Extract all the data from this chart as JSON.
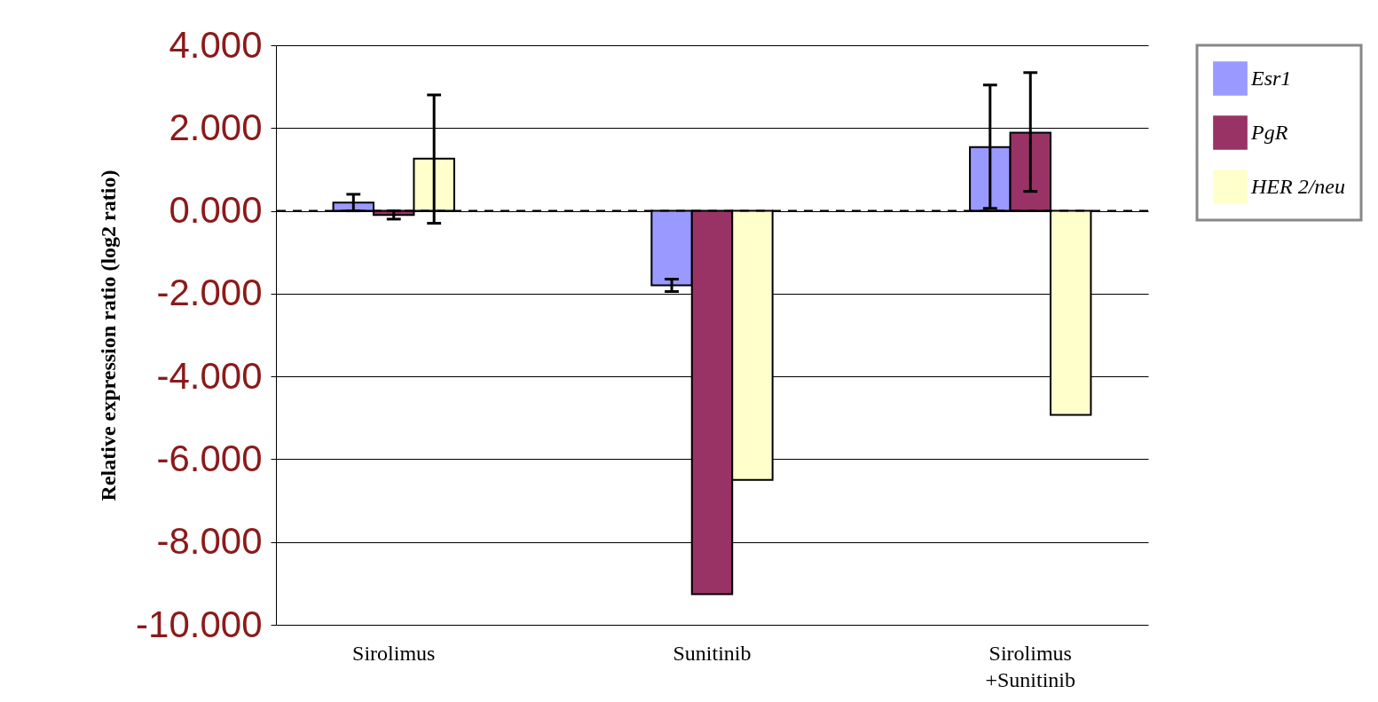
{
  "chart_data": {
    "type": "bar",
    "ylabel": "Relative expression ratio (log2 ratio)",
    "categories": [
      "Sirolimus",
      "Sunitinib",
      "Sirolimus +Sunitinib"
    ],
    "series": [
      {
        "name": "Esr1",
        "color": "#9999ff",
        "values": [
          0.2,
          -1.8,
          1.54
        ],
        "errors": [
          0.2,
          [
            -1.95,
            -1.65
          ],
          [
            0.06,
            3.04
          ]
        ]
      },
      {
        "name": "PgR",
        "color": "#993366",
        "values": [
          -0.1,
          -9.26,
          1.89
        ],
        "errors": [
          0.1,
          null,
          [
            0.47,
            3.34
          ]
        ]
      },
      {
        "name": "HER 2/neu",
        "color": "#ffffcc",
        "values": [
          1.26,
          -6.5,
          -4.93
        ],
        "errors": [
          [
            -0.3,
            2.8
          ],
          null,
          null
        ]
      }
    ],
    "ylim": [
      -10,
      4
    ],
    "yticks": [
      {
        "value": -10,
        "label": "-10.000"
      },
      {
        "value": -8,
        "label": "-8.000"
      },
      {
        "value": -6,
        "label": "-6.000"
      },
      {
        "value": -4,
        "label": "-4.000"
      },
      {
        "value": -2,
        "label": "-2.000"
      },
      {
        "value": 0,
        "label": "0.000"
      },
      {
        "value": 2,
        "label": "2.000"
      },
      {
        "value": 4,
        "label": "4.000"
      }
    ],
    "ref_lines": [
      {
        "axis": "y",
        "value": 0,
        "line_style": "dashed"
      }
    ],
    "grid": "y",
    "legend": "right"
  }
}
